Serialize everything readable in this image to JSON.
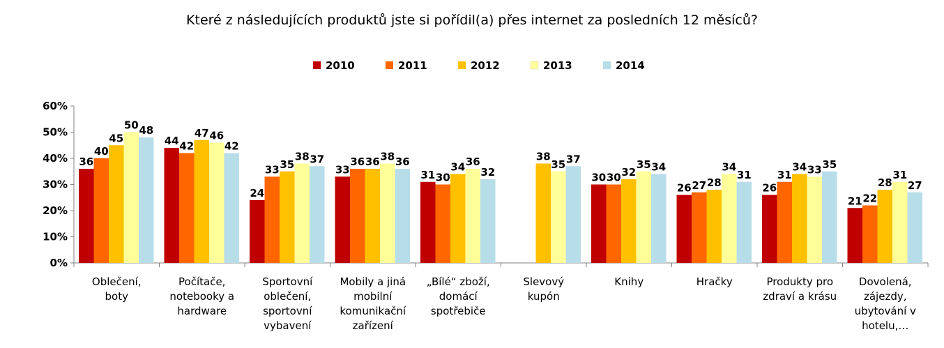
{
  "chart_data": {
    "type": "bar",
    "title": "Které z následujících produktů jste si pořídil(a) přes internet za posledních 12 měsíců?",
    "xlabel": "",
    "ylabel": "",
    "ylim": [
      0,
      60
    ],
    "yticks": [
      "0%",
      "10%",
      "20%",
      "30%",
      "40%",
      "50%",
      "60%"
    ],
    "legend_position": "top",
    "categories": [
      [
        "Oblečení,",
        "boty"
      ],
      [
        "Počítače,",
        "notebooky a",
        "hardware"
      ],
      [
        "Sportovní",
        "oblečení,",
        "sportovní",
        "vybavení"
      ],
      [
        "Mobily a jiná",
        "mobilní",
        "komunikační",
        "zařízení"
      ],
      [
        "„Bílé“ zboží,",
        "domácí",
        "spotřebiče"
      ],
      [
        "Slevový",
        "kupón"
      ],
      [
        "Knihy"
      ],
      [
        "Hračky"
      ],
      [
        "Produkty pro",
        "zdraví a krásu"
      ],
      [
        "Dovolená,",
        "zájezdy,",
        "ubytování v",
        "hotelu,…"
      ]
    ],
    "series": [
      {
        "name": "2010",
        "color": "#C00000",
        "values": [
          36,
          44,
          24,
          33,
          31,
          null,
          30,
          26,
          26,
          21
        ]
      },
      {
        "name": "2011",
        "color": "#FF6600",
        "values": [
          40,
          42,
          33,
          36,
          30,
          null,
          30,
          27,
          31,
          22
        ]
      },
      {
        "name": "2012",
        "color": "#FFC000",
        "values": [
          45,
          47,
          35,
          36,
          34,
          38,
          32,
          28,
          34,
          28
        ]
      },
      {
        "name": "2013",
        "color": "#FFFF99",
        "values": [
          50,
          46,
          38,
          38,
          36,
          35,
          35,
          34,
          33,
          31
        ]
      },
      {
        "name": "2014",
        "color": "#B7DEE8",
        "values": [
          48,
          42,
          37,
          36,
          32,
          37,
          34,
          31,
          35,
          27
        ]
      }
    ]
  }
}
